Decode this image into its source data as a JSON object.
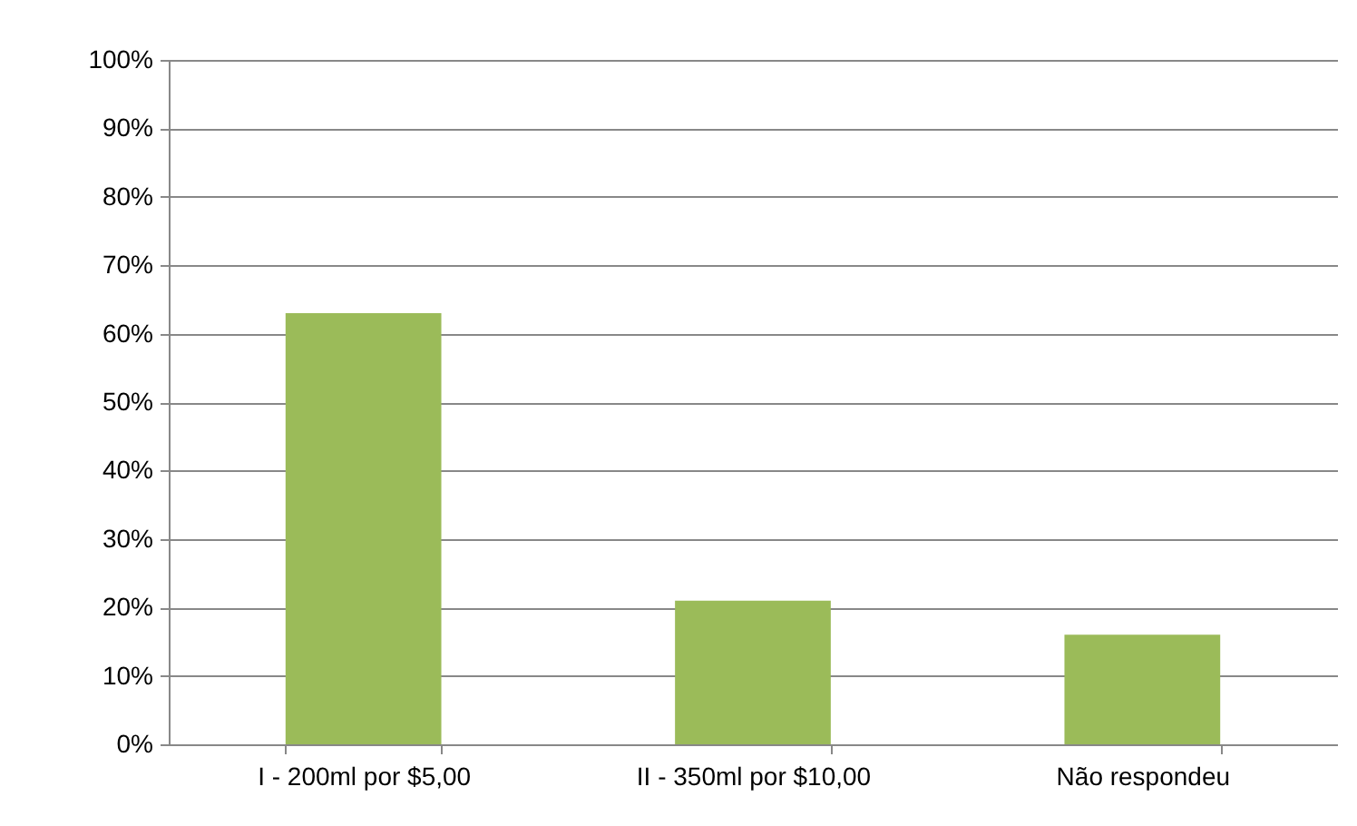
{
  "chart_data": {
    "type": "bar",
    "categories": [
      "I - 200ml por $5,00",
      "II - 350ml por $10,00",
      "Não respondeu"
    ],
    "values": [
      63,
      21,
      16
    ],
    "color": "#9bbb59",
    "ylim": [
      0,
      100
    ],
    "yticks": [
      {
        "value": 0,
        "label": "0%"
      },
      {
        "value": 10,
        "label": "10%"
      },
      {
        "value": 20,
        "label": "20%"
      },
      {
        "value": 30,
        "label": "30%"
      },
      {
        "value": 40,
        "label": "40%"
      },
      {
        "value": 50,
        "label": "50%"
      },
      {
        "value": 60,
        "label": "60%"
      },
      {
        "value": 70,
        "label": "70%"
      },
      {
        "value": 80,
        "label": "80%"
      },
      {
        "value": 90,
        "label": "90%"
      },
      {
        "value": 100,
        "label": "100%"
      }
    ],
    "grid": "y"
  }
}
